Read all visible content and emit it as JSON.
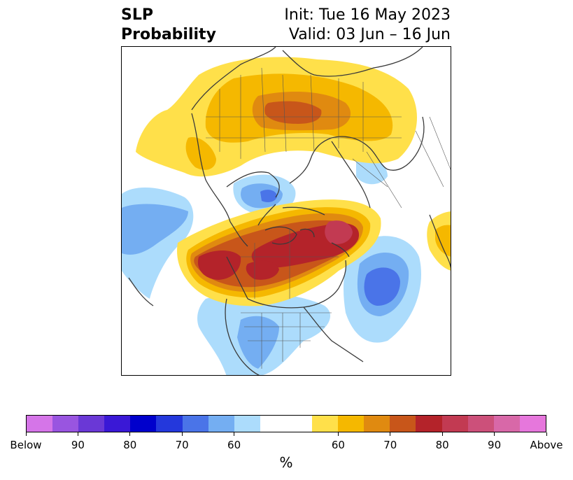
{
  "title": {
    "left_line1": "SLP",
    "left_line2": "Probability",
    "right_line1": "Init: Tue 16 May 2023",
    "right_line2": "Valid: 03 Jun – 16 Jun"
  },
  "colorbar": {
    "unit": "%",
    "colors": [
      "#d575e8",
      "#9955e0",
      "#6a38d6",
      "#3a18d6",
      "#0000cc",
      "#2438dc",
      "#4a74e8",
      "#74aef2",
      "#acdcfc",
      "#ffffff",
      "#ffffff",
      "#ffe04a",
      "#f5b800",
      "#e08a10",
      "#c8561a",
      "#b4232a",
      "#c23a52",
      "#cc507a",
      "#d868a8",
      "#e677dc"
    ],
    "labels": [
      "Below",
      "90",
      "80",
      "70",
      "60",
      "60",
      "70",
      "80",
      "90",
      "Above"
    ]
  },
  "map": {
    "description_colors": {
      "below": "#acdcfc",
      "below_mid": "#74aef2",
      "below_strong": "#4a74e8",
      "above": "#ffe04a",
      "above_mid": "#f5b800",
      "above_strong": "#e08a10",
      "above_high": "#c8561a",
      "above_max": "#b4232a",
      "above_peak": "#c23a52",
      "coast": "#3a3a3a"
    }
  }
}
